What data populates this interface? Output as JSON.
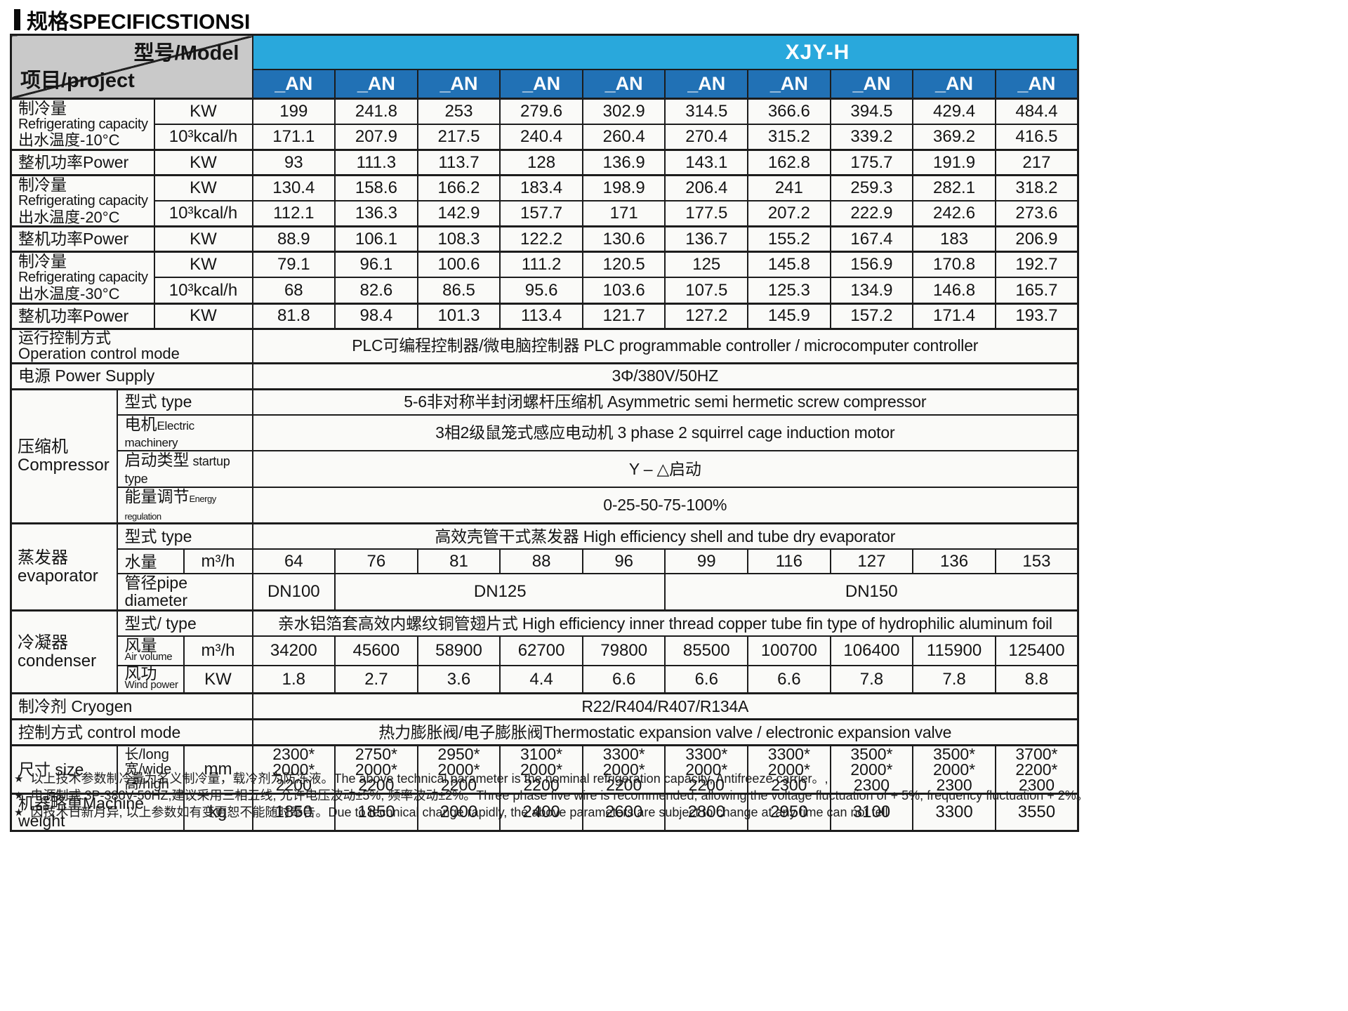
{
  "page": {
    "title": "规格SPECIFICSTIONSI"
  },
  "header": {
    "model_label": "型号/Model",
    "project_label": "项目/project",
    "series": "XJY-H",
    "models": [
      "_AN",
      "_AN",
      "_AN",
      "_AN",
      "_AN",
      "_AN",
      "_AN",
      "_AN",
      "_AN",
      "_AN"
    ]
  },
  "rows": {
    "cap10": {
      "zh": "制冷量",
      "en": "Refrigerating capacity",
      "temp": "出水温度-10°C",
      "kw_unit": "KW",
      "kcal_unit": "10³kcal/h",
      "kw": [
        "199",
        "241.8",
        "253",
        "279.6",
        "302.9",
        "314.5",
        "366.6",
        "394.5",
        "429.4",
        "484.4"
      ],
      "kcal": [
        "171.1",
        "207.9",
        "217.5",
        "240.4",
        "260.4",
        "270.4",
        "315.2",
        "339.2",
        "369.2",
        "416.5"
      ]
    },
    "power10": {
      "label": "整机功率Power",
      "unit": "KW",
      "values": [
        "93",
        "111.3",
        "113.7",
        "128",
        "136.9",
        "143.1",
        "162.8",
        "175.7",
        "191.9",
        "217"
      ]
    },
    "cap20": {
      "zh": "制冷量",
      "en": "Refrigerating capacity",
      "temp": "出水温度-20°C",
      "kw_unit": "KW",
      "kcal_unit": "10³kcal/h",
      "kw": [
        "130.4",
        "158.6",
        "166.2",
        "183.4",
        "198.9",
        "206.4",
        "241",
        "259.3",
        "282.1",
        "318.2"
      ],
      "kcal": [
        "112.1",
        "136.3",
        "142.9",
        "157.7",
        "171",
        "177.5",
        "207.2",
        "222.9",
        "242.6",
        "273.6"
      ]
    },
    "power20": {
      "label": "整机功率Power",
      "unit": "KW",
      "values": [
        "88.9",
        "106.1",
        "108.3",
        "122.2",
        "130.6",
        "136.7",
        "155.2",
        "167.4",
        "183",
        "206.9"
      ]
    },
    "cap30": {
      "zh": "制冷量",
      "en": "Refrigerating capacity",
      "temp": "出水温度-30°C",
      "kw_unit": "KW",
      "kcal_unit": "10³kcal/h",
      "kw": [
        "79.1",
        "96.1",
        "100.6",
        "111.2",
        "120.5",
        "125",
        "145.8",
        "156.9",
        "170.8",
        "192.7"
      ],
      "kcal": [
        "68",
        "82.6",
        "86.5",
        "95.6",
        "103.6",
        "107.5",
        "125.3",
        "134.9",
        "146.8",
        "165.7"
      ]
    },
    "power30": {
      "label": "整机功率Power",
      "unit": "KW",
      "values": [
        "81.8",
        "98.4",
        "101.3",
        "113.4",
        "121.7",
        "127.2",
        "145.9",
        "157.2",
        "171.4",
        "193.7"
      ]
    },
    "op_mode": {
      "zh": "运行控制方式",
      "en": "Operation control mode",
      "value": "PLC可编程控制器/微电脑控制器 PLC programmable controller / microcomputer controller"
    },
    "power_supply": {
      "label": "电源 Power Supply",
      "value": "3Φ/380V/50HZ"
    },
    "compressor": {
      "zh": "压缩机",
      "en": "Compressor",
      "type_label": "型式 type",
      "type": "5-6非对称半封闭螺杆压缩机 Asymmetric semi hermetic screw compressor",
      "motor_zh": "电机",
      "motor_en": "Electric machinery",
      "motor": "3相2级鼠笼式感应电动机 3 phase 2 squirrel cage induction motor",
      "startup_zh": "启动类型",
      "startup_en": "startup type",
      "startup": "Y – △启动",
      "energy_zh": "能量调节",
      "energy_en": "Energy regulation",
      "energy": "0-25-50-75-100%"
    },
    "evaporator": {
      "zh": "蒸发器",
      "en": "evaporator",
      "type_label": "型式 type",
      "type": "高效壳管干式蒸发器 High efficiency shell and tube dry evaporator",
      "water_label": "水量",
      "water_unit": "m³/h",
      "water": [
        "64",
        "76",
        "81",
        "88",
        "96",
        "99",
        "116",
        "127",
        "136",
        "153"
      ],
      "pipe_label": "管径pipe diameter",
      "pipe": [
        "DN100",
        "DN125",
        "DN150"
      ]
    },
    "condenser": {
      "zh": "冷凝器",
      "en": "condenser",
      "type_label": "型式/ type",
      "type": "亲水铝箔套高效内螺纹铜管翅片式 High efficiency inner thread copper tube fin type of hydrophilic aluminum foil",
      "air_zh": "风量",
      "air_en": "Air volume",
      "air_unit": "m³/h",
      "air": [
        "34200",
        "45600",
        "58900",
        "62700",
        "79800",
        "85500",
        "100700",
        "106400",
        "115900",
        "125400"
      ],
      "wind_zh": "风功",
      "wind_en": "Wind power",
      "wind_unit": "KW",
      "wind": [
        "1.8",
        "2.7",
        "3.6",
        "4.4",
        "6.6",
        "6.6",
        "6.6",
        "7.8",
        "7.8",
        "8.8"
      ]
    },
    "cryogen": {
      "label": "制冷剂 Cryogen",
      "value": "R22/R404/R407/R134A"
    },
    "ctrl": {
      "label": "控制方式 control mode",
      "value": "热力膨胀阀/电子膨胀阀Thermostatic expansion valve / electronic expansion valve"
    },
    "size": {
      "zh": "尺寸 size",
      "dims_label": "长/long\n宽/wide\n高/high",
      "unit": "mm",
      "values": [
        "2300*\n2000*\n2200",
        "2750*\n2000*\n2200",
        "2950*\n2000*\n2200",
        "3100*\n2000*\n2200",
        "3300*\n2000*\n2200",
        "3300*\n2000*\n2200",
        "3300*\n2000*\n2300",
        "3500*\n2000*\n2300",
        "3500*\n2000*\n2300",
        "3700*\n2200*\n2300"
      ]
    },
    "weight": {
      "label": "机器略重Machine weight",
      "unit": "kg",
      "values": [
        "1850",
        "1850",
        "2000",
        "2400",
        "2600",
        "2800",
        "2950",
        "3100",
        "3300",
        "3550"
      ]
    }
  },
  "footnotes": {
    "bullet": "★",
    "lines": [
      "以上技术参数制冷量为名义制冷量，载冷剂为防冻液。The above technical parameter is the nominal refrigeration capacity, Antifreeze carrier。,",
      "电源制式:3P-380V-50HZ,建议采用三相五线, 允许电压波动±5%, 频率波动±2%。Three phase five wire is recommended, allowing the voltage fluctuation of + 5%, frequency fluctuation + 2%。",
      "因技术日新月异, 以上参数如有变更恕不能随时奉告。Due to technical change rapidly, the above parameters are subject to change at any time can not tell"
    ]
  },
  "colors": {
    "banner": "#29a8dc",
    "model_cell": "#2171b5",
    "header_gray": "#c9c9c9"
  }
}
